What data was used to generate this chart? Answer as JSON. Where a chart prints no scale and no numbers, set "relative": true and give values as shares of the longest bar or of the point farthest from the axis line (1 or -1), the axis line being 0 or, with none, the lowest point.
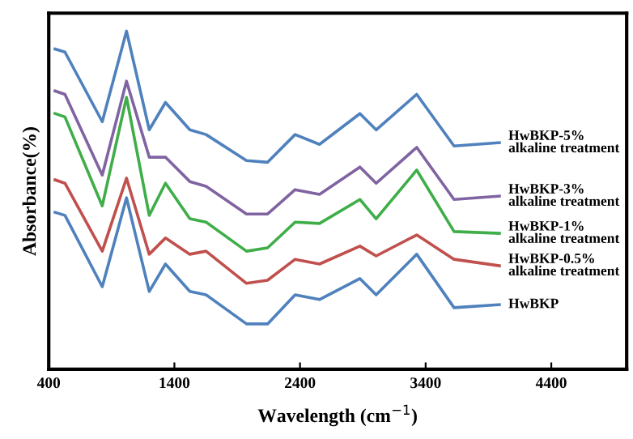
{
  "chart_data": {
    "type": "line",
    "relative": true,
    "xlabel": "Wavelength (cm$^{−1}$)",
    "ylabel": "Absorbance(%)",
    "x": [
      450,
      529,
      826,
      1019,
      1200,
      1329,
      1523,
      1652,
      1974,
      2142,
      2361,
      2555,
      2877,
      3006,
      3329,
      3626,
      3987
    ],
    "xlim": [
      400,
      5000
    ],
    "xticks": [
      400,
      1400,
      2400,
      3400,
      4400
    ],
    "legend": false,
    "grid": false,
    "series": [
      {
        "name": "HwBKP-5%\nalkaline treatment",
        "color": "#4f81bd",
        "values": [
          0.947,
          0.938,
          0.732,
          1.0,
          0.708,
          0.789,
          0.708,
          0.694,
          0.617,
          0.612,
          0.694,
          0.665,
          0.756,
          0.708,
          0.813,
          0.66,
          0.67
        ]
      },
      {
        "name": "HwBKP-3%\nalkaline treatment",
        "color": "#8064a2",
        "values": [
          0.823,
          0.813,
          0.574,
          0.852,
          0.627,
          0.627,
          0.555,
          0.541,
          0.459,
          0.459,
          0.531,
          0.517,
          0.598,
          0.55,
          0.656,
          0.502,
          0.512
        ]
      },
      {
        "name": "HwBKP-1%\nalkaline treatment",
        "color": "#3fae49",
        "values": [
          0.756,
          0.746,
          0.483,
          0.804,
          0.455,
          0.55,
          0.445,
          0.435,
          0.349,
          0.359,
          0.435,
          0.431,
          0.502,
          0.445,
          0.589,
          0.407,
          0.402
        ]
      },
      {
        "name": "HwBKP-0.5%\nalkaline treatment",
        "color": "#c0504d",
        "values": [
          0.56,
          0.55,
          0.349,
          0.565,
          0.34,
          0.388,
          0.34,
          0.349,
          0.254,
          0.263,
          0.325,
          0.311,
          0.364,
          0.335,
          0.397,
          0.325,
          0.306
        ]
      },
      {
        "name": "HwBKP",
        "color": "#4f81bd",
        "values": [
          0.464,
          0.455,
          0.244,
          0.507,
          0.23,
          0.311,
          0.23,
          0.22,
          0.134,
          0.134,
          0.22,
          0.206,
          0.268,
          0.22,
          0.34,
          0.182,
          0.191
        ]
      }
    ]
  }
}
